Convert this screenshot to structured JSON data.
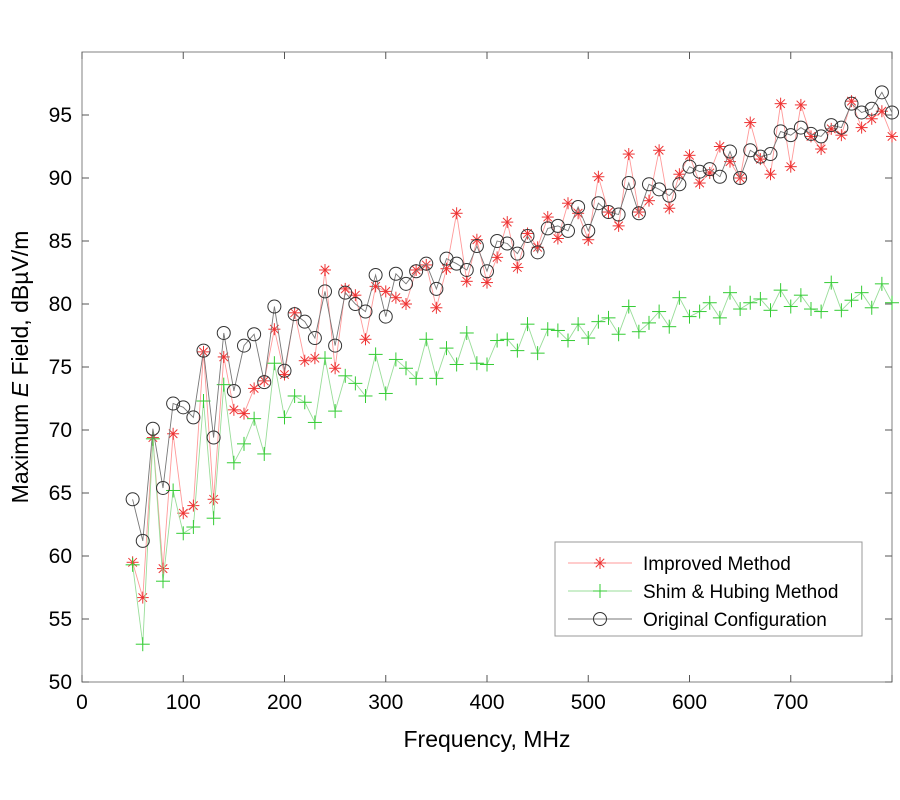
{
  "figure": {
    "background": "#ffffff"
  },
  "chart_data": {
    "type": "line",
    "title": "",
    "xlabel": "Frequency, MHz",
    "ylabel_parts": {
      "prefix": "Maximum ",
      "italic": "E",
      "suffix": " Field, dBµV/m"
    },
    "xlim": [
      0,
      800
    ],
    "ylim": [
      50,
      100
    ],
    "grid": false,
    "x_tick_values": [
      0,
      100,
      200,
      300,
      400,
      500,
      600,
      700
    ],
    "x_tick_labels": [
      "0",
      "100",
      "200",
      "300",
      "400",
      "500",
      "600",
      "700"
    ],
    "x_tick_marks": [
      0,
      100,
      200,
      300,
      400,
      500,
      600,
      700,
      800
    ],
    "y_tick_values": [
      50,
      55,
      60,
      65,
      70,
      75,
      80,
      85,
      90,
      95
    ],
    "y_tick_labels": [
      "50",
      "55",
      "60",
      "65",
      "70",
      "75",
      "80",
      "85",
      "90",
      "95"
    ],
    "legend": {
      "position": "bottom-right",
      "border_color": "#999999",
      "entries": [
        "Improved Method",
        "Shim & Hubing Method",
        "Original Configuration"
      ]
    },
    "x": [
      50,
      60,
      70,
      80,
      90,
      100,
      110,
      120,
      130,
      140,
      150,
      160,
      170,
      180,
      190,
      200,
      210,
      220,
      230,
      240,
      250,
      260,
      270,
      280,
      290,
      300,
      310,
      320,
      330,
      340,
      350,
      360,
      370,
      380,
      390,
      400,
      410,
      420,
      430,
      440,
      450,
      460,
      470,
      480,
      490,
      500,
      510,
      520,
      530,
      540,
      550,
      560,
      570,
      580,
      590,
      600,
      610,
      620,
      630,
      640,
      650,
      660,
      670,
      680,
      690,
      700,
      710,
      720,
      730,
      740,
      750,
      760,
      770,
      780,
      790,
      800
    ],
    "series": [
      {
        "name": "Improved Method",
        "marker": "asterisk",
        "line_color": "#ff9999",
        "marker_color": "#ee3333",
        "values": [
          59.5,
          56.7,
          69.4,
          59.0,
          69.7,
          63.4,
          64.0,
          76.2,
          64.5,
          75.8,
          71.6,
          71.3,
          73.3,
          73.9,
          78.0,
          74.4,
          79.3,
          75.5,
          75.7,
          82.7,
          74.9,
          81.2,
          80.7,
          77.2,
          81.4,
          81.0,
          80.5,
          80.0,
          82.7,
          83.1,
          79.7,
          82.8,
          87.2,
          81.8,
          85.1,
          81.7,
          83.7,
          86.5,
          82.9,
          85.6,
          84.5,
          86.9,
          85.2,
          88.0,
          87.2,
          85.1,
          90.1,
          87.3,
          86.2,
          91.9,
          87.3,
          88.2,
          92.2,
          87.6,
          90.3,
          91.8,
          89.6,
          90.4,
          92.5,
          91.3,
          90.0,
          94.4,
          91.5,
          90.3,
          95.9,
          90.9,
          95.8,
          93.3,
          92.3,
          93.9,
          93.4,
          96.1,
          94.0,
          94.7,
          95.3,
          93.3
        ]
      },
      {
        "name": "Shim & Hubing Method",
        "marker": "plus",
        "line_color": "#99dd99",
        "marker_color": "#33cc33",
        "values": [
          59.3,
          53.0,
          69.3,
          58.0,
          65.2,
          61.8,
          62.3,
          72.3,
          63.0,
          73.6,
          67.4,
          68.9,
          70.9,
          68.1,
          75.3,
          71.0,
          72.7,
          72.2,
          70.6,
          75.7,
          71.5,
          74.3,
          73.7,
          72.7,
          76.0,
          72.9,
          75.6,
          74.9,
          74.1,
          77.2,
          74.1,
          76.5,
          75.2,
          77.7,
          75.3,
          75.2,
          77.1,
          77.2,
          76.3,
          78.4,
          76.1,
          78.0,
          77.9,
          77.1,
          78.4,
          77.3,
          78.6,
          78.9,
          77.6,
          79.8,
          77.8,
          78.5,
          79.4,
          78.2,
          80.5,
          79.0,
          79.4,
          80.1,
          78.9,
          80.9,
          79.6,
          80.1,
          80.4,
          79.5,
          81.1,
          79.8,
          80.7,
          79.6,
          79.4,
          81.7,
          79.5,
          80.3,
          80.9,
          79.7,
          81.6,
          80.1
        ]
      },
      {
        "name": "Original Configuration",
        "marker": "circle",
        "line_color": "#777777",
        "marker_color": "#333333",
        "values": [
          64.5,
          61.2,
          70.1,
          65.4,
          72.1,
          71.8,
          71.0,
          76.3,
          69.4,
          77.7,
          73.1,
          76.7,
          77.6,
          73.8,
          79.8,
          74.7,
          79.2,
          78.6,
          77.3,
          81.0,
          76.7,
          80.9,
          80.0,
          79.4,
          82.3,
          79.0,
          82.4,
          81.6,
          82.6,
          83.2,
          81.2,
          83.6,
          83.2,
          82.7,
          84.6,
          82.6,
          85.0,
          84.8,
          84.0,
          85.4,
          84.1,
          86.0,
          86.2,
          85.8,
          87.7,
          85.8,
          88.0,
          87.3,
          87.1,
          89.6,
          87.2,
          89.5,
          89.1,
          88.6,
          89.5,
          90.9,
          90.5,
          90.7,
          90.1,
          92.1,
          90.0,
          92.2,
          91.7,
          91.9,
          93.7,
          93.4,
          94.0,
          93.5,
          93.3,
          94.2,
          94.0,
          95.9,
          95.2,
          95.5,
          96.8,
          95.2
        ]
      }
    ]
  },
  "axes_style": {
    "box_color": "#808080",
    "tick_color": "#555555",
    "text_color": "#000000"
  }
}
